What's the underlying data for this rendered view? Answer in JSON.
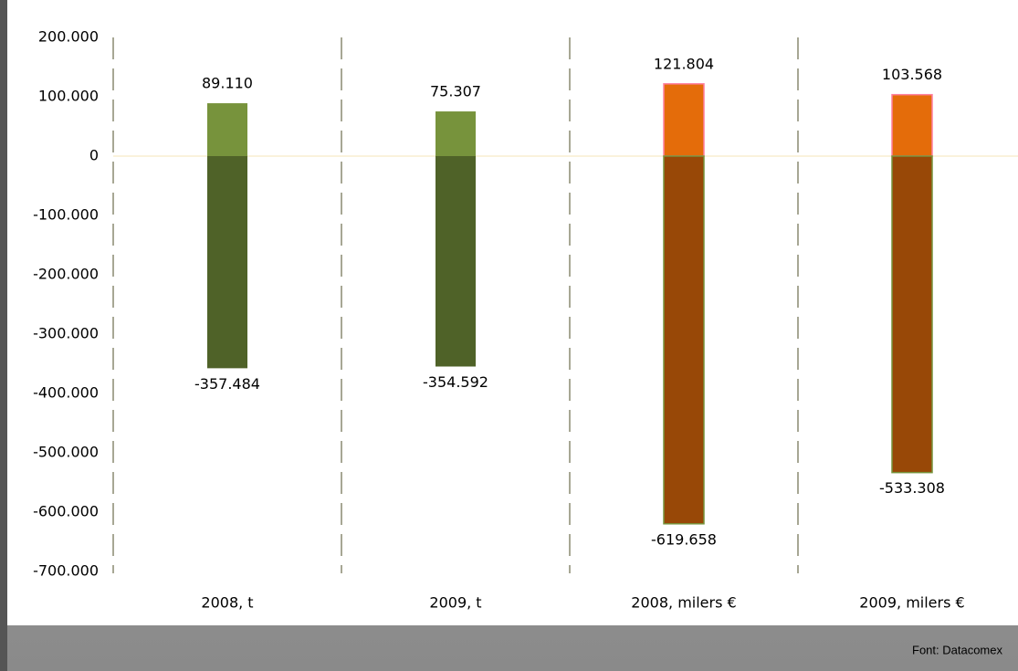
{
  "chart_data": {
    "type": "bar",
    "categories": [
      "2008, t",
      "2009, t",
      "2008, milers €",
      "2009, milers €"
    ],
    "series": [
      {
        "color": [
          "#77933c",
          "#77933c",
          "#e46c0a",
          "#e46c0a"
        ],
        "values": [
          89110,
          75307,
          121804,
          103568
        ],
        "value_labels": [
          "89.110",
          "75.307",
          "121.804",
          "103.568"
        ]
      },
      {
        "color": [
          "#4f6228",
          "#4f6228",
          "#984807",
          "#984807"
        ],
        "values": [
          -357484,
          -354592,
          -619658,
          -533308
        ],
        "value_labels": [
          "-357.484",
          "-354.592",
          "-619.658",
          "-533.308"
        ]
      }
    ],
    "ylim": [
      -700000,
      200000
    ],
    "yticks": [
      {
        "value": -700000,
        "label": "-700.000"
      },
      {
        "value": -600000,
        "label": "-600.000"
      },
      {
        "value": -500000,
        "label": "-500.000"
      },
      {
        "value": -400000,
        "label": "-400.000"
      },
      {
        "value": -300000,
        "label": "-300.000"
      },
      {
        "value": -200000,
        "label": "-200.000"
      },
      {
        "value": -100000,
        "label": "-100.000"
      },
      0,
      {
        "value": 100000,
        "label": "100.000"
      },
      {
        "value": 200000,
        "label": "200.000"
      }
    ],
    "source": "Font: Datacomex"
  }
}
